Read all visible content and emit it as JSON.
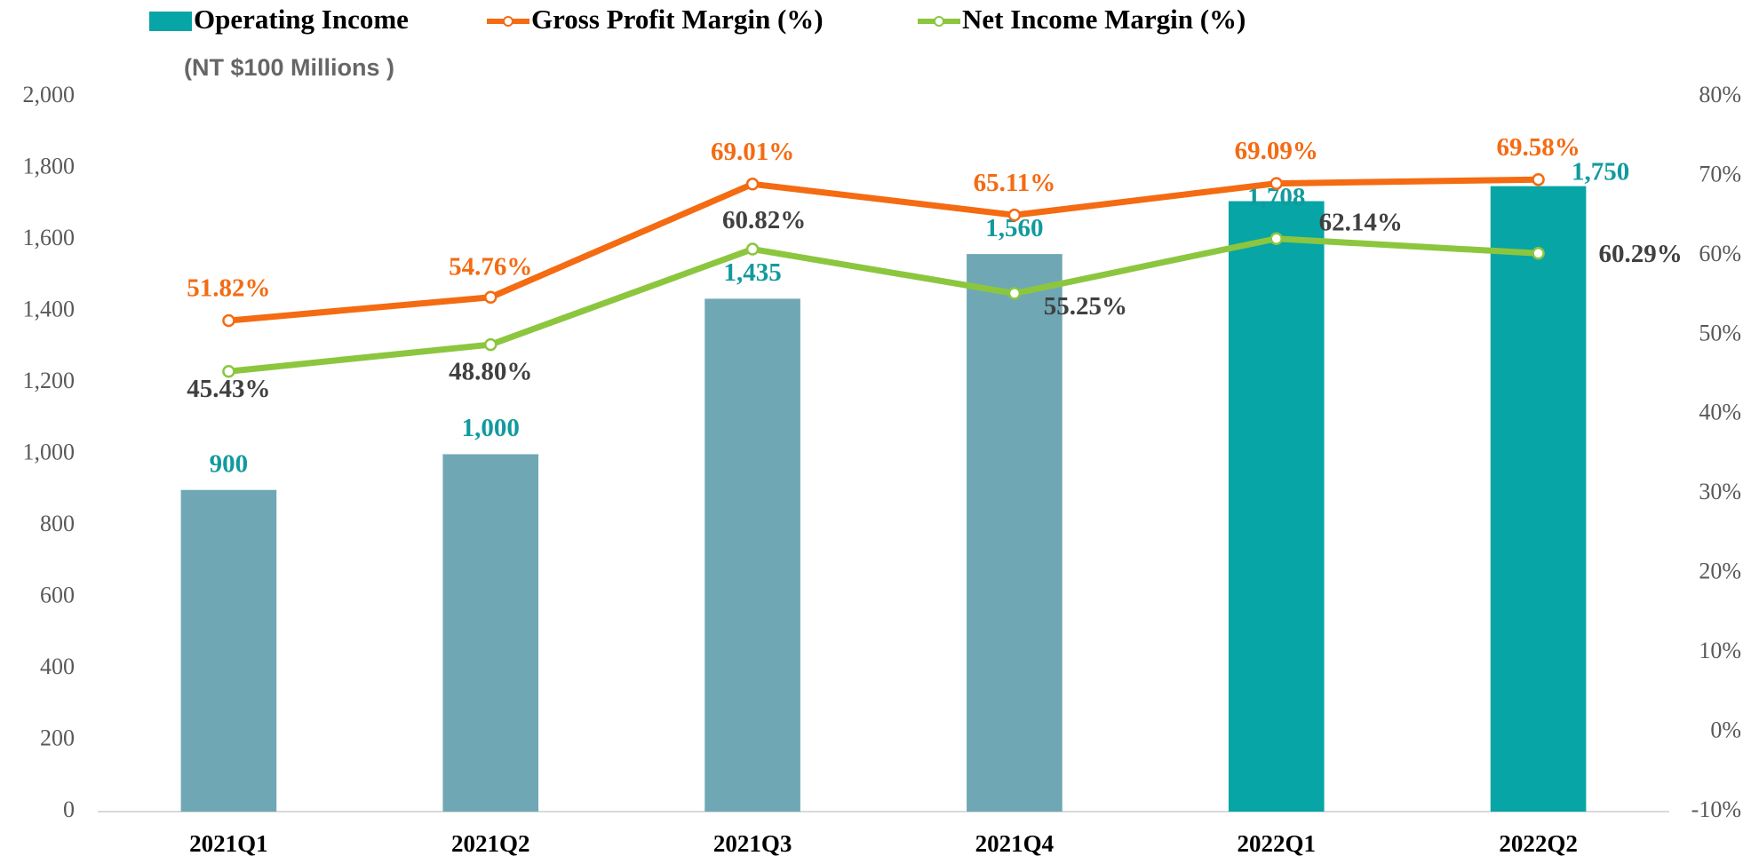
{
  "chart_data": {
    "type": "bar_line",
    "subtitle": "(NT $100 Millions )",
    "categories": [
      "2021Q1",
      "2021Q2",
      "2021Q3",
      "2021Q4",
      "2022Q1",
      "2022Q2"
    ],
    "ylim": [
      0,
      2000
    ],
    "yticks": [
      0,
      200,
      400,
      600,
      800,
      {
        "value": 1000,
        "label": "1,000"
      },
      {
        "value": 1200,
        "label": "1,200"
      },
      {
        "value": 1400,
        "label": "1,400"
      },
      {
        "value": 1600,
        "label": "1,600"
      },
      {
        "value": 1800,
        "label": "1,800"
      },
      {
        "value": 2000,
        "label": "2,000"
      }
    ],
    "y2lim": [
      -10,
      80
    ],
    "y2ticks": [
      {
        "value": -10,
        "label": "-10%"
      },
      {
        "value": 0,
        "label": "0%"
      },
      {
        "value": 10,
        "label": "10%"
      },
      {
        "value": 20,
        "label": "20%"
      },
      {
        "value": 30,
        "label": "30%"
      },
      {
        "value": 40,
        "label": "40%"
      },
      {
        "value": 50,
        "label": "50%"
      },
      {
        "value": 60,
        "label": "60%"
      },
      {
        "value": 70,
        "label": "70%"
      },
      {
        "value": 80,
        "label": "80%"
      }
    ],
    "series": [
      {
        "name": "Operating Income",
        "type": "bar",
        "color": "#07a5a5",
        "label_color": "#119a9e",
        "colors": [
          "#6fa8b4",
          "#6fa8b4",
          "#6fa8b4",
          "#6fa8b4",
          "#07a5a5",
          "#07a5a5"
        ],
        "values": [
          900,
          1000,
          1435,
          1560,
          1708,
          1750
        ],
        "value_labels": [
          "900",
          "1,000",
          "1,435",
          "1,560",
          "1,708",
          "1,750"
        ]
      },
      {
        "name": "Gross Profit Margin (%)",
        "type": "line",
        "axis": "y2",
        "color": "#f46b12",
        "label_color": "#f46b12",
        "values": [
          51.82,
          54.76,
          69.01,
          65.11,
          69.09,
          69.58
        ],
        "value_labels": [
          "51.82%",
          "54.76%",
          "69.01%",
          "65.11%",
          "69.09%",
          "69.58%"
        ]
      },
      {
        "name": "Net Income Margin (%)",
        "type": "line",
        "axis": "y2",
        "color": "#8cc63f",
        "label_color": "#404040",
        "values": [
          45.43,
          48.8,
          60.82,
          55.25,
          62.14,
          60.29
        ],
        "value_labels": [
          "45.43%",
          "48.80%",
          "60.82%",
          "55.25%",
          "62.14%",
          "60.29%"
        ]
      }
    ]
  }
}
